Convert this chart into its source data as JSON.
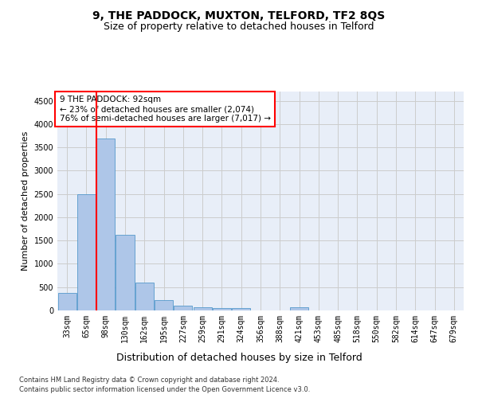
{
  "title1": "9, THE PADDOCK, MUXTON, TELFORD, TF2 8QS",
  "title2": "Size of property relative to detached houses in Telford",
  "xlabel": "Distribution of detached houses by size in Telford",
  "ylabel": "Number of detached properties",
  "categories": [
    "33sqm",
    "65sqm",
    "98sqm",
    "130sqm",
    "162sqm",
    "195sqm",
    "227sqm",
    "259sqm",
    "291sqm",
    "324sqm",
    "356sqm",
    "388sqm",
    "421sqm",
    "453sqm",
    "485sqm",
    "518sqm",
    "550sqm",
    "582sqm",
    "614sqm",
    "647sqm",
    "679sqm"
  ],
  "values": [
    370,
    2500,
    3700,
    1620,
    590,
    230,
    110,
    65,
    50,
    50,
    0,
    0,
    70,
    0,
    0,
    0,
    0,
    0,
    0,
    0,
    0
  ],
  "bar_color": "#aec6e8",
  "bar_edgecolor": "#5599cc",
  "vline_x_index": 2,
  "vline_color": "red",
  "annotation_text": "9 THE PADDOCK: 92sqm\n← 23% of detached houses are smaller (2,074)\n76% of semi-detached houses are larger (7,017) →",
  "annotation_box_color": "white",
  "annotation_box_edgecolor": "red",
  "ylim": [
    0,
    4700
  ],
  "yticks": [
    0,
    500,
    1000,
    1500,
    2000,
    2500,
    3000,
    3500,
    4000,
    4500
  ],
  "grid_color": "#cccccc",
  "background_color": "#e8eef8",
  "footer_line1": "Contains HM Land Registry data © Crown copyright and database right 2024.",
  "footer_line2": "Contains public sector information licensed under the Open Government Licence v3.0.",
  "title1_fontsize": 10,
  "title2_fontsize": 9,
  "xlabel_fontsize": 9,
  "ylabel_fontsize": 8,
  "tick_fontsize": 7,
  "annotation_fontsize": 7.5
}
